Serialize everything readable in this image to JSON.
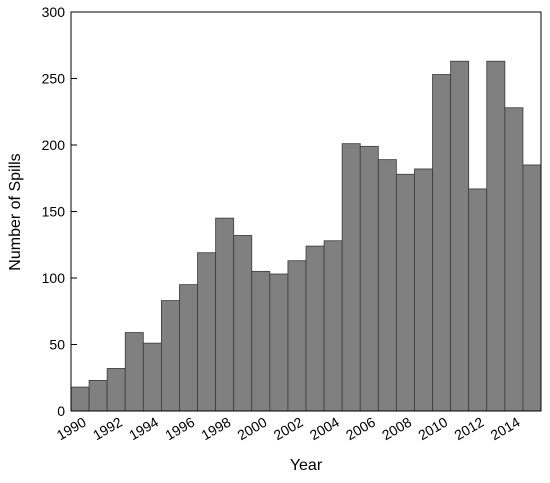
{
  "chart_data": {
    "type": "bar",
    "x_label": "Year",
    "y_label": "Number of Spills",
    "categories": [
      "1990",
      null,
      "1992",
      null,
      "1994",
      null,
      "1996",
      null,
      "1998",
      null,
      "2000",
      null,
      "2002",
      null,
      "2004",
      null,
      "2006",
      null,
      "2008",
      null,
      "2010",
      null,
      "2012",
      null,
      "2014",
      null
    ],
    "values": [
      18,
      23,
      32,
      59,
      51,
      83,
      95,
      119,
      145,
      132,
      105,
      103,
      113,
      124,
      128,
      201,
      199,
      189,
      178,
      182,
      253,
      263,
      167,
      263,
      228,
      185
    ],
    "color": "#808080",
    "ylim": [
      0,
      300
    ],
    "yticks": [
      0,
      50,
      100,
      150,
      200,
      250,
      300
    ],
    "grid": false
  }
}
